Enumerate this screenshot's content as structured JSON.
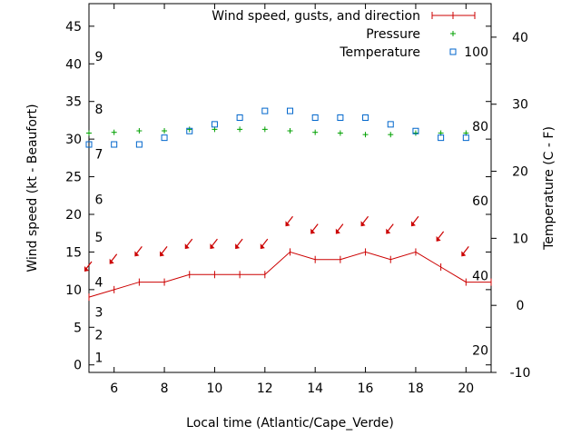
{
  "chart_data": {
    "type": "line",
    "xlabel": "Local time (Atlantic/Cape_Verde)",
    "ylabel_left": "Wind speed (kt - Beaufort)",
    "ylabel_right": "Temperature (C - F)",
    "xlim": [
      5,
      21
    ],
    "ylim_left": [
      -1,
      48
    ],
    "ylim_right": [
      -10,
      45
    ],
    "x_ticks": [
      "6",
      "8",
      "10",
      "12",
      "14",
      "16",
      "18",
      "20"
    ],
    "y_ticks_left": [
      "0",
      "5",
      "10",
      "15",
      "20",
      "25",
      "30",
      "35",
      "40",
      "45"
    ],
    "y_ticks_right": [
      "-10",
      "0",
      "10",
      "20",
      "30",
      "40"
    ],
    "beaufort_scale": [
      {
        "label": "1",
        "kt": 1
      },
      {
        "label": "2",
        "kt": 4
      },
      {
        "label": "3",
        "kt": 7
      },
      {
        "label": "4",
        "kt": 11
      },
      {
        "label": "5",
        "kt": 17
      },
      {
        "label": "6",
        "kt": 22
      },
      {
        "label": "7",
        "kt": 28
      },
      {
        "label": "8",
        "kt": 34
      },
      {
        "label": "9",
        "kt": 41
      }
    ],
    "fahrenheit_scale": [
      {
        "label": "20",
        "c": -6.7
      },
      {
        "label": "40",
        "c": 4.4
      },
      {
        "label": "60",
        "c": 15.6
      },
      {
        "label": "80",
        "c": 26.7
      },
      {
        "label": "100",
        "c": 37.8
      }
    ],
    "legend": {
      "position": "top-right",
      "entries": [
        "Wind speed, gusts, and direction",
        "Pressure",
        "Temperature"
      ]
    },
    "series": [
      {
        "name": "Wind speed, gusts, and direction",
        "axis": "left",
        "color": "#cc0000",
        "x": [
          5,
          6,
          7,
          8,
          9,
          10,
          11,
          12,
          13,
          14,
          15,
          16,
          17,
          18,
          19,
          20,
          21
        ],
        "values": [
          9,
          10,
          11,
          11,
          12,
          12,
          12,
          12,
          15,
          14,
          14,
          15,
          14,
          15,
          13,
          11,
          11
        ]
      },
      {
        "name": "Wind direction arrows",
        "axis": "left",
        "color": "#cc0000",
        "x": [
          5,
          6,
          7,
          8,
          9,
          10,
          11,
          12,
          13,
          14,
          15,
          16,
          17,
          18,
          19,
          20
        ],
        "values": [
          13,
          14,
          15,
          15,
          16,
          16,
          16,
          16,
          19,
          18,
          18,
          19,
          18,
          19,
          17,
          15
        ]
      },
      {
        "name": "Pressure",
        "axis": "left",
        "color": "#00a000",
        "x": [
          5,
          6,
          7,
          8,
          9,
          10,
          11,
          12,
          13,
          14,
          15,
          16,
          17,
          18,
          19,
          20
        ],
        "values": [
          30.8,
          30.9,
          31.1,
          31.1,
          31.3,
          31.3,
          31.3,
          31.3,
          31.1,
          30.9,
          30.8,
          30.6,
          30.6,
          30.8,
          30.8,
          30.8
        ]
      },
      {
        "name": "Temperature",
        "axis": "right",
        "color": "#0066cc",
        "x": [
          5,
          6,
          7,
          8,
          9,
          10,
          11,
          12,
          13,
          14,
          15,
          16,
          17,
          18,
          19,
          20
        ],
        "values": [
          24,
          24,
          24,
          25,
          26,
          27,
          28,
          29,
          29,
          28,
          28,
          28,
          27,
          26,
          25,
          25
        ]
      }
    ]
  }
}
